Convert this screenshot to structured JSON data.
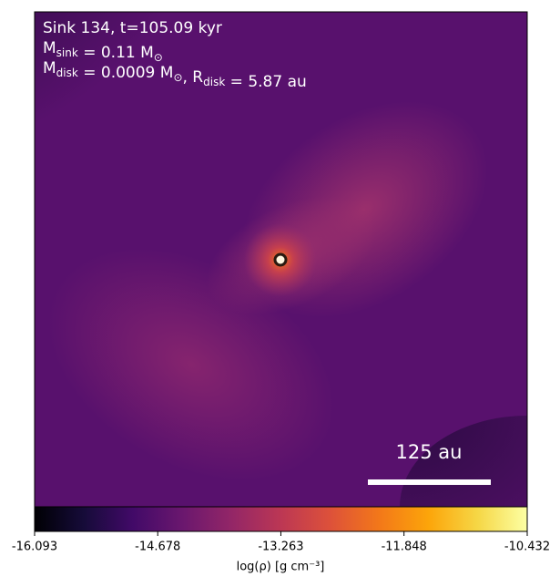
{
  "chart_data": {
    "type": "image",
    "annotations": [
      [
        {
          "text": "Sink 134, t=105.09 kyr"
        }
      ],
      [
        {
          "text": "M"
        },
        {
          "sub": "sink"
        },
        {
          "text": " = 0.11 M"
        },
        {
          "sub": "⊙"
        }
      ],
      [
        {
          "text": "M"
        },
        {
          "sub": "disk"
        },
        {
          "text": " = 0.0009 M"
        },
        {
          "sub": "⊙"
        },
        {
          "text": ", R"
        },
        {
          "sub": "disk"
        },
        {
          "text": " = 5.87 au"
        }
      ]
    ],
    "scale_bar_label": "125 au",
    "colormap": "inferno",
    "clim": [
      -16.093,
      -10.432
    ],
    "cticks": [
      -16.093,
      -14.678,
      -13.263,
      -11.848,
      -10.432
    ],
    "colorbar_label": "log(ρ) [g cm⁻³]"
  }
}
